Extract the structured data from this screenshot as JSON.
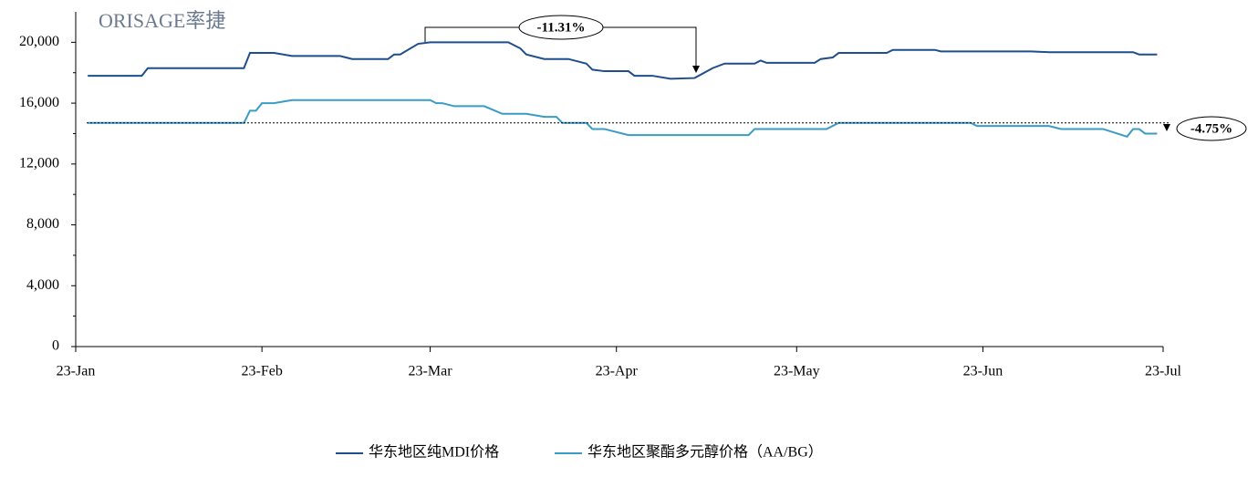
{
  "chart_data": {
    "type": "line",
    "logo": "ORISAGE率捷",
    "xlim": [
      0,
      181
    ],
    "xticks": [
      {
        "value": 0,
        "label": "23-Jan"
      },
      {
        "value": 31,
        "label": "23-Feb"
      },
      {
        "value": 59,
        "label": "23-Mar"
      },
      {
        "value": 90,
        "label": "23-Apr"
      },
      {
        "value": 120,
        "label": "23-May"
      },
      {
        "value": 151,
        "label": "23-Jun"
      },
      {
        "value": 181,
        "label": "23-Jul"
      }
    ],
    "ylim": [
      0,
      22000
    ],
    "yticks": [
      {
        "value": 0,
        "label": "0"
      },
      {
        "value": 4000,
        "label": "4,000"
      },
      {
        "value": 8000,
        "label": "8,000"
      },
      {
        "value": 12000,
        "label": "12,000"
      },
      {
        "value": 16000,
        "label": "16,000"
      },
      {
        "value": 20000,
        "label": "20,000"
      }
    ],
    "legend": "bottom",
    "annotations": [
      "-11.31%",
      "-4.75%"
    ],
    "series": [
      {
        "name": "华东地区纯MDI价格",
        "color": "#1f4e8c",
        "x": [
          2,
          11,
          12,
          28,
          29,
          33,
          36,
          44,
          46,
          52,
          53,
          54,
          57,
          59,
          72,
          74,
          75,
          78,
          82,
          85,
          86,
          88,
          92,
          93,
          96,
          99,
          103,
          106,
          108,
          113,
          114,
          115,
          123,
          124,
          126,
          127,
          135,
          136,
          143,
          144,
          159,
          162,
          176,
          177,
          180
        ],
        "values": [
          17800,
          17800,
          18300,
          18300,
          19300,
          19300,
          19100,
          19100,
          18900,
          18900,
          19200,
          19200,
          19900,
          20000,
          20000,
          19600,
          19200,
          18900,
          18900,
          18600,
          18200,
          18100,
          18100,
          17800,
          17800,
          17600,
          17650,
          18300,
          18600,
          18600,
          18800,
          18650,
          18650,
          18900,
          19000,
          19300,
          19300,
          19500,
          19500,
          19400,
          19400,
          19350,
          19350,
          19200,
          19200
        ]
      },
      {
        "name": "华东地区聚酯多元醇价格（AA/BG）",
        "color": "#3a9cc6",
        "x": [
          2,
          28,
          29,
          30,
          31,
          33,
          36,
          59,
          60,
          61,
          63,
          68,
          71,
          75,
          78,
          80,
          81,
          85,
          86,
          88,
          92,
          112,
          113,
          125,
          127,
          149,
          150,
          162,
          164,
          171,
          175,
          176,
          177,
          178,
          180
        ],
        "values": [
          14700,
          14700,
          15500,
          15500,
          16000,
          16000,
          16200,
          16200,
          16000,
          16000,
          15800,
          15800,
          15300,
          15300,
          15100,
          15100,
          14700,
          14700,
          14300,
          14300,
          13900,
          13900,
          14300,
          14300,
          14700,
          14700,
          14500,
          14500,
          14300,
          14300,
          13800,
          14300,
          14300,
          14000,
          14000
        ]
      }
    ]
  }
}
